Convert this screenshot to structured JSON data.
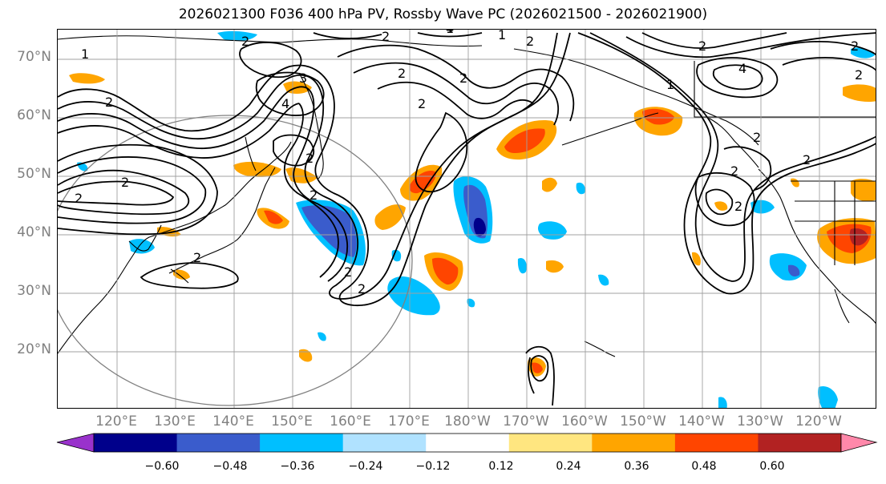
{
  "title": "2026021300 F036 400 hPa PV, Rossby Wave PC (2026021500 - 2026021900)",
  "map": {
    "projection": "cylindrical",
    "lon_range": [
      110,
      250
    ],
    "lat_range": [
      10,
      75
    ],
    "latitude_labels": [
      "70°N",
      "60°N",
      "50°N",
      "40°N",
      "30°N",
      "20°N"
    ],
    "longitude_labels": [
      "120°E",
      "130°E",
      "140°E",
      "150°E",
      "160°E",
      "170°E",
      "180°W",
      "170°W",
      "160°W",
      "150°W",
      "140°W",
      "130°W",
      "120°W"
    ],
    "contour_labels": [
      "1",
      "2",
      "2",
      "2",
      "3",
      "4",
      "2",
      "1",
      "2",
      "1",
      "2",
      "4",
      "2",
      "2",
      "2",
      "2",
      "2",
      "2",
      "2",
      "2",
      "1",
      "4",
      "2",
      "2",
      "2",
      "2",
      "2",
      "2",
      "2"
    ]
  },
  "colorbar": {
    "ticks": [
      "−0.60",
      "−0.48",
      "−0.36",
      "−0.24",
      "−0.12",
      "0.12",
      "0.24",
      "0.36",
      "0.48",
      "0.60"
    ],
    "colors": [
      "#9932cc",
      "#00008b",
      "#3a5ccc",
      "#00bfff",
      "#b0e2ff",
      "#ffffff",
      "#ffe680",
      "#ffa500",
      "#ff4500",
      "#b22222",
      "#ff88aa"
    ]
  }
}
